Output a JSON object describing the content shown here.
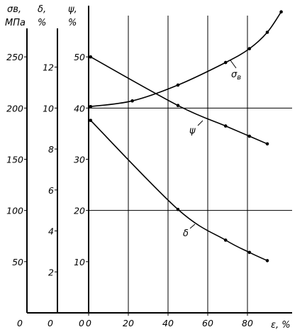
{
  "chart_data": {
    "type": "line",
    "x_axis": {
      "label": "ε, %",
      "range": [
        0,
        100
      ],
      "ticks": [
        "0",
        "20",
        "40",
        "60",
        "80"
      ]
    },
    "y_axes": [
      {
        "id": "sigma",
        "label_top": "σв,",
        "label_bottom": "МПа",
        "range": [
          0,
          300
        ],
        "ticks": [
          "0",
          "50",
          "100",
          "150",
          "200",
          "250"
        ]
      },
      {
        "id": "delta",
        "label_top": "δ,",
        "label_bottom": "%",
        "range": [
          0,
          15
        ],
        "ticks": [
          "0",
          "2",
          "4",
          "6",
          "8",
          "10",
          "12"
        ]
      },
      {
        "id": "psi",
        "label_top": "ψ,",
        "label_bottom": "%",
        "range": [
          0,
          60
        ],
        "ticks": [
          "0",
          "10",
          "20",
          "30",
          "40",
          "50"
        ]
      }
    ],
    "grid": {
      "x_lines": [
        20,
        40,
        60,
        80
      ],
      "psi_lines": [
        20,
        40
      ]
    },
    "series": [
      {
        "name": "σв",
        "axis": "sigma",
        "points": [
          [
            1,
            201.5
          ],
          [
            22,
            207
          ],
          [
            45,
            222.5
          ],
          [
            69,
            244.5
          ],
          [
            81,
            258
          ],
          [
            90,
            274
          ],
          [
            97,
            294
          ]
        ]
      },
      {
        "name": "ψ",
        "axis": "psi",
        "points": [
          [
            1,
            50
          ],
          [
            45,
            40.5
          ],
          [
            69,
            36.5
          ],
          [
            81,
            34.5
          ],
          [
            90,
            33
          ]
        ]
      },
      {
        "name": "δ",
        "axis": "delta",
        "points": [
          [
            1,
            9.4
          ],
          [
            45,
            5.05
          ],
          [
            69,
            3.55
          ],
          [
            81,
            2.95
          ],
          [
            90,
            2.55
          ]
        ]
      }
    ],
    "curve_labels": [
      {
        "series": "σв",
        "text_main": "σ",
        "text_sub": "в"
      },
      {
        "series": "ψ",
        "text_main": "ψ"
      },
      {
        "series": "δ",
        "text_main": "δ"
      }
    ]
  }
}
